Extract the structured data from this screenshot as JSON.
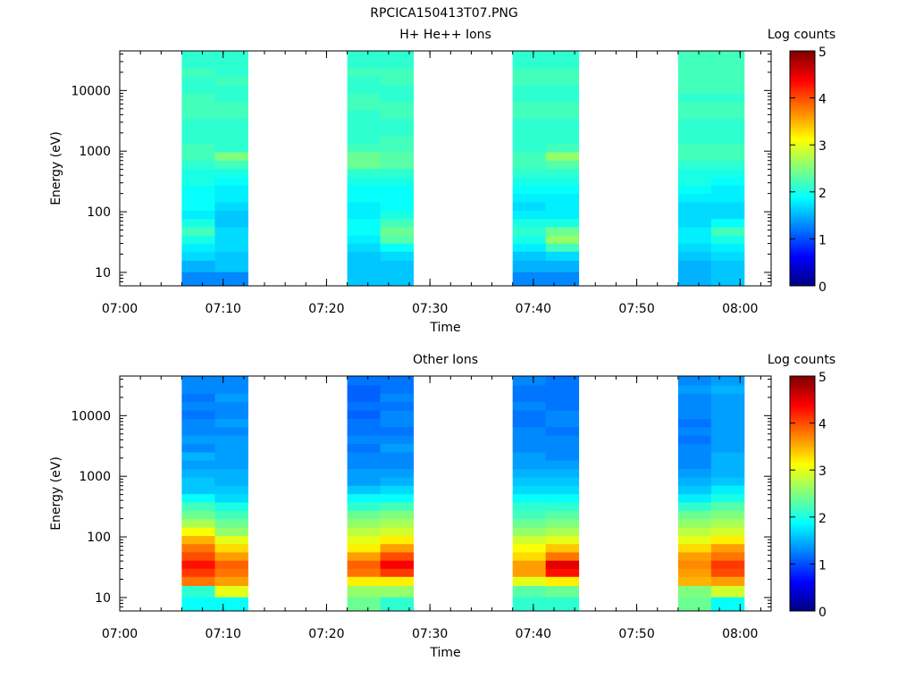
{
  "figure_title": "RPCICA150413T07.PNG",
  "colors": {
    "axis": "#000000",
    "background": "#ffffff",
    "colormap": [
      "#00007f",
      "#0000ff",
      "#007fff",
      "#00ffff",
      "#7fff7f",
      "#ffff00",
      "#ff7f00",
      "#ff0000",
      "#7f0000"
    ]
  },
  "chart_data": [
    {
      "type": "heatmap",
      "title": "H+ He++ Ions",
      "xlabel": "Time",
      "ylabel": "Energy (eV)",
      "yscale": "log",
      "ylim": [
        6,
        45000
      ],
      "xlim": [
        "07:00",
        "08:03"
      ],
      "x_tick_labels": [
        "07:00",
        "07:10",
        "07:20",
        "07:30",
        "07:40",
        "07:50",
        "08:00"
      ],
      "y_tick_labels": [
        "10",
        "100",
        "1000",
        "10000"
      ],
      "colorbar": {
        "label": "Log counts",
        "range": [
          0,
          5
        ],
        "tick_labels": [
          "0",
          "1",
          "2",
          "3",
          "4",
          "5"
        ]
      },
      "grid": false,
      "energy_bins_eV": [
        8,
        13,
        19,
        26,
        35,
        48,
        66,
        90,
        123,
        170,
        233,
        320,
        440,
        604,
        830,
        1140,
        1566,
        2150,
        2953,
        4056,
        5570,
        7650,
        10500,
        14430,
        19800,
        27200,
        37400
      ],
      "columns": [
        {
          "start": "07:06:00",
          "end": "07:09:12",
          "log_counts": [
            1.3,
            1.5,
            1.7,
            1.8,
            2.0,
            2.2,
            2.0,
            1.8,
            1.9,
            1.9,
            1.9,
            2.0,
            2.0,
            2.1,
            2.2,
            2.2,
            2.1,
            2.1,
            2.1,
            2.2,
            2.2,
            2.2,
            2.1,
            2.1,
            2.2,
            2.1,
            2.1
          ]
        },
        {
          "start": "07:09:12",
          "end": "07:12:24",
          "log_counts": [
            1.3,
            1.6,
            1.6,
            1.7,
            1.7,
            1.7,
            1.6,
            1.6,
            1.7,
            1.8,
            1.8,
            1.9,
            2.0,
            2.2,
            2.5,
            2.1,
            2.1,
            2.1,
            2.1,
            2.2,
            2.2,
            2.1,
            2.1,
            2.2,
            2.1,
            2.1,
            2.1
          ]
        },
        {
          "start": "07:22:00",
          "end": "07:25:12",
          "log_counts": [
            1.6,
            1.6,
            1.6,
            1.7,
            1.8,
            1.9,
            1.9,
            1.8,
            1.8,
            1.9,
            1.9,
            2.0,
            2.1,
            2.4,
            2.4,
            2.2,
            2.1,
            2.1,
            2.1,
            2.1,
            2.2,
            2.2,
            2.1,
            2.1,
            2.2,
            2.1,
            2.1
          ]
        },
        {
          "start": "07:25:12",
          "end": "07:28:24",
          "log_counts": [
            1.6,
            1.6,
            1.7,
            1.9,
            2.3,
            2.4,
            2.2,
            2.0,
            1.9,
            1.9,
            1.9,
            2.0,
            2.1,
            2.3,
            2.3,
            2.2,
            2.2,
            2.1,
            2.1,
            2.2,
            2.2,
            2.1,
            2.1,
            2.2,
            2.2,
            2.1,
            2.1
          ]
        },
        {
          "start": "07:38:00",
          "end": "07:41:12",
          "log_counts": [
            1.3,
            1.5,
            1.6,
            1.8,
            2.0,
            2.1,
            2.0,
            1.8,
            1.7,
            1.8,
            1.9,
            2.0,
            2.1,
            2.2,
            2.2,
            2.1,
            2.1,
            2.1,
            2.1,
            2.2,
            2.2,
            2.1,
            2.1,
            2.2,
            2.2,
            2.1,
            2.1
          ]
        },
        {
          "start": "07:41:12",
          "end": "07:44:24",
          "log_counts": [
            1.3,
            1.5,
            1.7,
            2.2,
            2.6,
            2.4,
            2.0,
            1.8,
            1.8,
            1.8,
            1.9,
            2.0,
            2.1,
            2.3,
            2.6,
            2.2,
            2.1,
            2.1,
            2.1,
            2.2,
            2.2,
            2.1,
            2.1,
            2.2,
            2.2,
            2.1,
            2.1
          ]
        },
        {
          "start": "07:54:00",
          "end": "07:57:12",
          "log_counts": [
            1.5,
            1.5,
            1.6,
            1.7,
            1.8,
            1.8,
            1.7,
            1.7,
            1.7,
            1.8,
            1.9,
            2.0,
            2.0,
            2.1,
            2.2,
            2.2,
            2.1,
            2.1,
            2.1,
            2.2,
            2.2,
            2.1,
            2.2,
            2.2,
            2.2,
            2.2,
            2.2
          ]
        },
        {
          "start": "07:57:12",
          "end": "08:00:24",
          "log_counts": [
            1.6,
            1.6,
            1.7,
            1.8,
            2.0,
            2.2,
            1.9,
            1.7,
            1.7,
            1.8,
            1.8,
            1.9,
            2.0,
            2.1,
            2.2,
            2.2,
            2.1,
            2.1,
            2.1,
            2.2,
            2.2,
            2.1,
            2.2,
            2.2,
            2.2,
            2.2,
            2.2
          ]
        }
      ]
    },
    {
      "type": "heatmap",
      "title": "Other Ions",
      "xlabel": "Time",
      "ylabel": "Energy (eV)",
      "yscale": "log",
      "ylim": [
        6,
        45000
      ],
      "xlim": [
        "07:00",
        "08:03"
      ],
      "x_tick_labels": [
        "07:00",
        "07:10",
        "07:20",
        "07:30",
        "07:40",
        "07:50",
        "08:00"
      ],
      "y_tick_labels": [
        "10",
        "100",
        "1000",
        "10000"
      ],
      "colorbar": {
        "label": "Log counts",
        "range": [
          0,
          5
        ],
        "tick_labels": [
          "0",
          "1",
          "2",
          "3",
          "4",
          "5"
        ]
      },
      "grid": false,
      "energy_bins_eV": [
        8,
        13,
        19,
        26,
        35,
        48,
        66,
        90,
        123,
        170,
        233,
        320,
        440,
        604,
        830,
        1140,
        1566,
        2150,
        2953,
        4056,
        5570,
        7650,
        10500,
        14430,
        19800,
        27200,
        37400
      ],
      "columns": [
        {
          "start": "07:06:00",
          "end": "07:09:12",
          "log_counts": [
            1.9,
            2.1,
            3.8,
            4.1,
            4.3,
            4.0,
            3.8,
            3.5,
            3.1,
            2.7,
            2.4,
            2.2,
            1.9,
            1.6,
            1.6,
            1.5,
            1.4,
            1.5,
            1.3,
            1.4,
            1.3,
            1.3,
            1.2,
            1.3,
            1.2,
            1.3,
            1.3
          ]
        },
        {
          "start": "07:09:12",
          "end": "07:12:24",
          "log_counts": [
            1.9,
            3.0,
            3.6,
            3.8,
            3.9,
            3.6,
            3.3,
            3.0,
            2.6,
            2.4,
            2.2,
            2.0,
            1.7,
            1.6,
            1.5,
            1.5,
            1.4,
            1.4,
            1.4,
            1.4,
            1.3,
            1.4,
            1.3,
            1.3,
            1.4,
            1.3,
            1.3
          ]
        },
        {
          "start": "07:22:00",
          "end": "07:25:12",
          "log_counts": [
            2.4,
            2.6,
            3.2,
            3.8,
            3.9,
            3.6,
            3.2,
            3.0,
            2.8,
            2.6,
            2.4,
            2.1,
            1.9,
            1.6,
            1.4,
            1.4,
            1.3,
            1.3,
            1.2,
            1.3,
            1.2,
            1.2,
            1.1,
            1.2,
            1.1,
            1.1,
            1.2
          ]
        },
        {
          "start": "07:25:12",
          "end": "07:28:24",
          "log_counts": [
            2.1,
            2.6,
            3.2,
            4.1,
            4.4,
            4.0,
            3.6,
            3.2,
            2.9,
            2.7,
            2.5,
            2.2,
            1.9,
            1.7,
            1.5,
            1.4,
            1.3,
            1.3,
            1.4,
            1.3,
            1.2,
            1.3,
            1.3,
            1.2,
            1.3,
            1.2,
            1.2
          ]
        },
        {
          "start": "07:38:00",
          "end": "07:41:12",
          "log_counts": [
            2.1,
            2.3,
            3.0,
            3.6,
            3.6,
            3.3,
            3.1,
            2.9,
            2.6,
            2.4,
            2.2,
            2.1,
            1.9,
            1.7,
            1.6,
            1.5,
            1.4,
            1.4,
            1.3,
            1.3,
            1.3,
            1.2,
            1.2,
            1.3,
            1.2,
            1.2,
            1.3
          ]
        },
        {
          "start": "07:41:12",
          "end": "07:44:24",
          "log_counts": [
            2.1,
            2.4,
            3.2,
            4.3,
            4.5,
            3.8,
            3.4,
            3.0,
            2.7,
            2.5,
            2.3,
            2.1,
            1.9,
            1.7,
            1.6,
            1.5,
            1.4,
            1.3,
            1.3,
            1.3,
            1.2,
            1.3,
            1.3,
            1.2,
            1.2,
            1.2,
            1.2
          ]
        },
        {
          "start": "07:54:00",
          "end": "07:57:12",
          "log_counts": [
            2.4,
            2.5,
            3.5,
            3.6,
            3.7,
            3.6,
            3.3,
            3.0,
            2.8,
            2.6,
            2.4,
            2.1,
            1.8,
            1.6,
            1.5,
            1.4,
            1.3,
            1.3,
            1.3,
            1.2,
            1.3,
            1.2,
            1.3,
            1.3,
            1.3,
            1.4,
            1.3
          ]
        },
        {
          "start": "07:57:12",
          "end": "08:00:24",
          "log_counts": [
            1.9,
            2.9,
            3.6,
            4.0,
            4.1,
            3.8,
            3.6,
            3.2,
            2.9,
            2.7,
            2.5,
            2.3,
            2.0,
            1.8,
            1.6,
            1.5,
            1.5,
            1.5,
            1.4,
            1.4,
            1.4,
            1.4,
            1.4,
            1.4,
            1.4,
            1.5,
            1.4
          ]
        }
      ]
    }
  ]
}
